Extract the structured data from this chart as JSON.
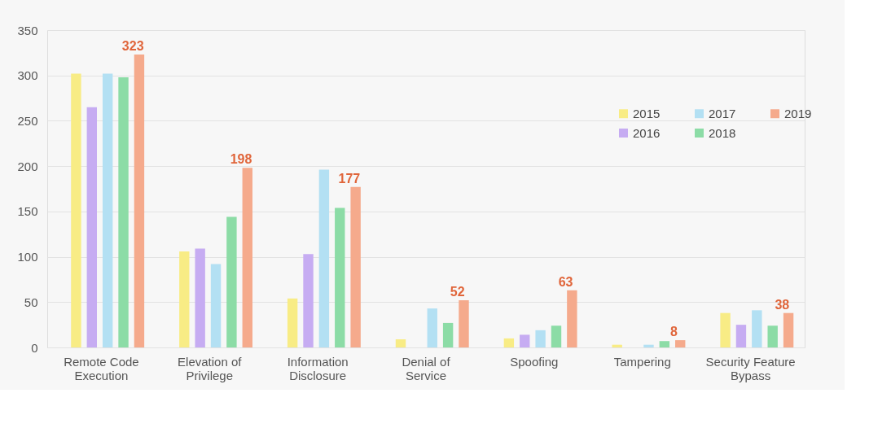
{
  "chart_data": {
    "type": "bar",
    "categories": [
      "Remote Code Execution",
      "Elevation of Privilege",
      "Information Disclosure",
      "Denial of Service",
      "Spoofing",
      "Tampering",
      "Security Feature Bypass"
    ],
    "series": [
      {
        "name": "2015",
        "color": "#f8ec85",
        "values": [
          302,
          106,
          54,
          9,
          10,
          3,
          38
        ]
      },
      {
        "name": "2016",
        "color": "#c6acf2",
        "values": [
          265,
          109,
          103,
          0,
          14,
          0,
          25
        ]
      },
      {
        "name": "2017",
        "color": "#b3e0f3",
        "values": [
          302,
          92,
          196,
          43,
          19,
          3,
          41
        ]
      },
      {
        "name": "2018",
        "color": "#8cdca6",
        "values": [
          298,
          144,
          154,
          27,
          24,
          7,
          24
        ]
      },
      {
        "name": "2019",
        "color": "#f5aa8c",
        "values": [
          323,
          198,
          177,
          52,
          63,
          8,
          38
        ],
        "value_labels": [
          "323",
          "198",
          "177",
          "52",
          "63",
          "8",
          "38"
        ]
      }
    ],
    "ylim": [
      0,
      350
    ],
    "yticks": [
      0,
      50,
      100,
      150,
      200,
      250,
      300,
      350
    ],
    "grid": "y",
    "legend": "top right"
  }
}
